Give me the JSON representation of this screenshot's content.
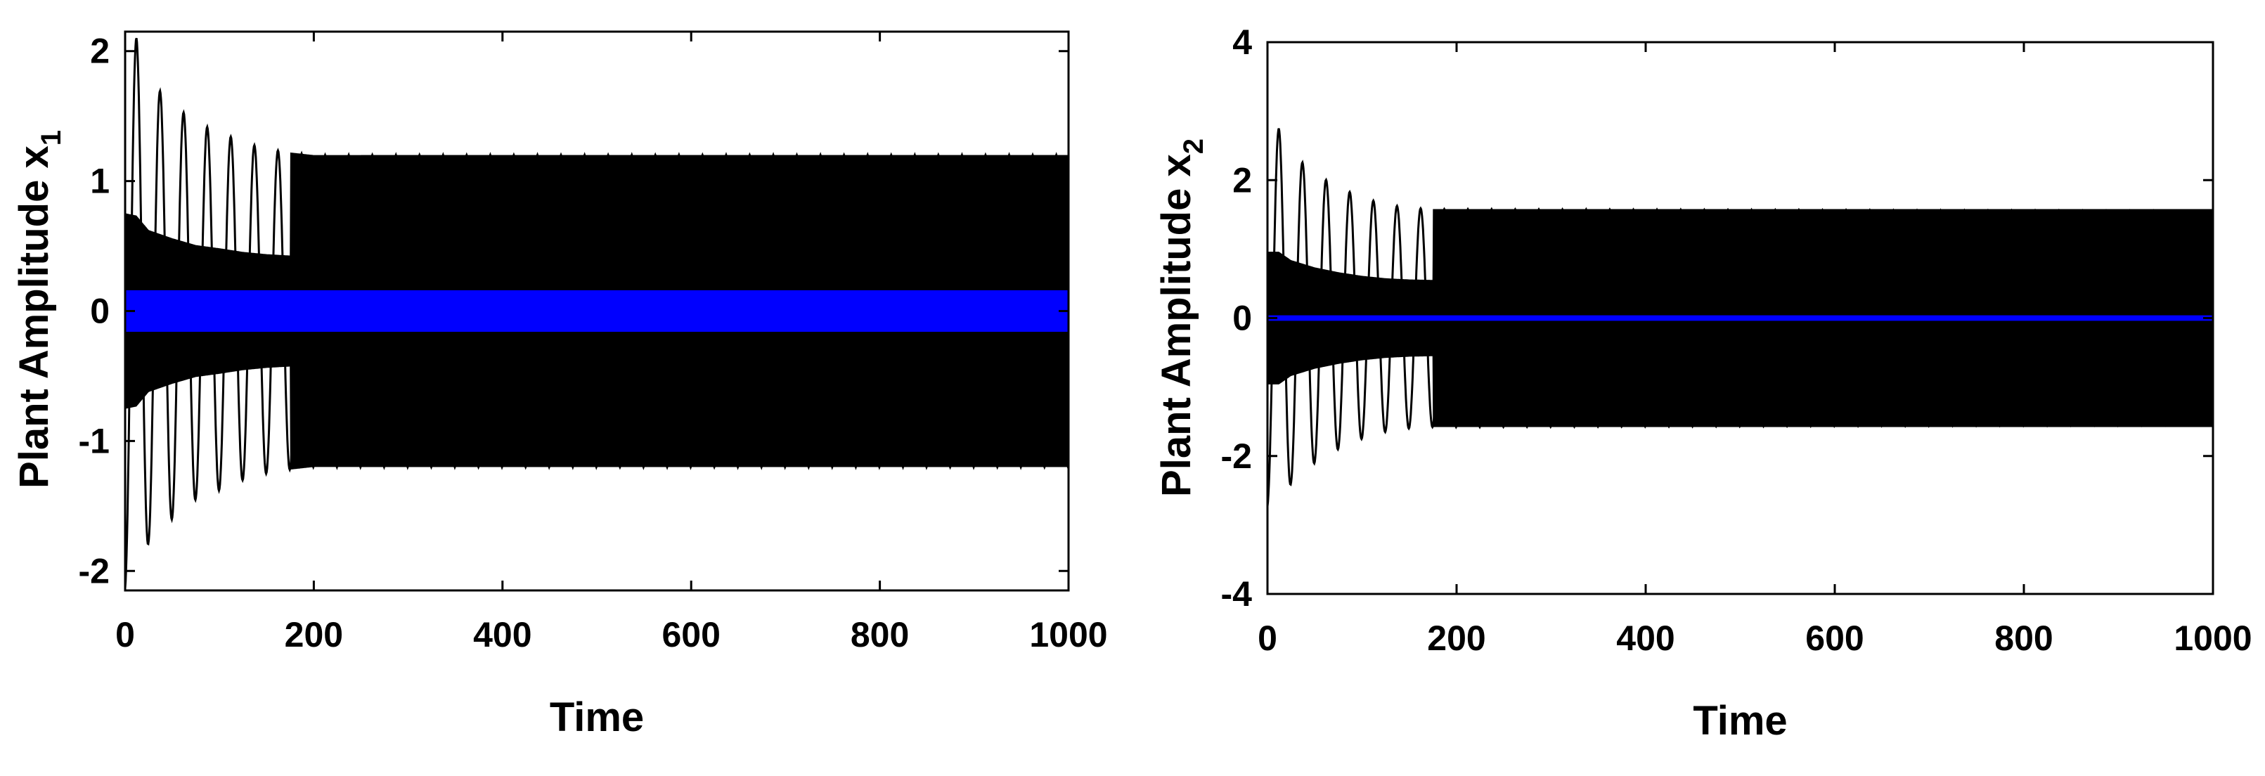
{
  "chart_data": [
    {
      "type": "line",
      "xlabel": "Time",
      "ylabel": {
        "text": "Plant Amplitude x",
        "subscript": "1"
      },
      "xlim": [
        0,
        1000
      ],
      "ylim": [
        -2.15,
        2.15
      ],
      "xticks": [
        0,
        200,
        400,
        600,
        800,
        1000
      ],
      "yticks": [
        -2,
        -1,
        0,
        1,
        2
      ],
      "grid": false,
      "colors": {
        "oscillation": "#000000",
        "signal": "#0000ff"
      },
      "series": [
        {
          "type": "damped-oscillation-envelope",
          "color": "#000000",
          "x": [
            0,
            12,
            25,
            50,
            75,
            100,
            125,
            150,
            175,
            200,
            250,
            1000
          ],
          "upper": [
            2.15,
            2.1,
            1.78,
            1.6,
            1.45,
            1.38,
            1.3,
            1.25,
            1.22,
            1.2,
            1.2,
            1.2
          ],
          "lower": [
            -2.15,
            -2.1,
            -1.78,
            -1.6,
            -1.45,
            -1.38,
            -1.3,
            -1.25,
            -1.22,
            -1.2,
            -1.2,
            -1.2
          ]
        },
        {
          "type": "band",
          "color": "#0000ff",
          "x": [
            0,
            1000
          ],
          "upper": [
            0.16,
            0.16
          ],
          "lower": [
            -0.16,
            -0.16
          ]
        }
      ]
    },
    {
      "type": "line",
      "xlabel": "Time",
      "ylabel": {
        "text": "Plant Amplitude x",
        "subscript": "2"
      },
      "xlim": [
        0,
        1000
      ],
      "ylim": [
        -4,
        4
      ],
      "xticks": [
        0,
        200,
        400,
        600,
        800,
        1000
      ],
      "yticks": [
        -4,
        -2,
        0,
        2,
        4
      ],
      "grid": false,
      "colors": {
        "oscillation": "#000000",
        "signal": "#0000ff"
      },
      "series": [
        {
          "type": "damped-oscillation-envelope",
          "color": "#000000",
          "x": [
            0,
            12,
            25,
            50,
            75,
            100,
            125,
            150,
            175,
            1000
          ],
          "upper": [
            2.75,
            2.75,
            2.4,
            2.1,
            1.9,
            1.75,
            1.65,
            1.6,
            1.58,
            1.55
          ],
          "lower": [
            -2.75,
            -2.75,
            -2.4,
            -2.1,
            -1.9,
            -1.75,
            -1.65,
            -1.6,
            -1.58,
            -1.55
          ]
        },
        {
          "type": "band",
          "color": "#0000ff",
          "x": [
            0,
            1000
          ],
          "upper": [
            0.04,
            0.04
          ],
          "lower": [
            -0.04,
            -0.04
          ]
        }
      ]
    }
  ]
}
